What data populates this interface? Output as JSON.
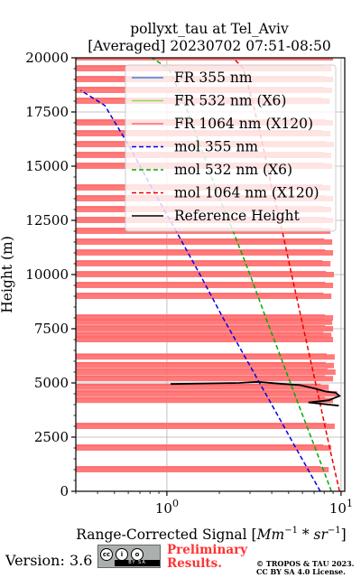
{
  "chart_data": {
    "type": "line",
    "title": "pollyxt_tau at Tel_Aviv",
    "subtitle": "[Averaged] 20230702 07:51-08:50",
    "xlabel": "Range-Corrected Signal [Mm^-1 * sr^-1]",
    "ylabel": "Height (m)",
    "xscale": "log",
    "xlim": [
      0.3,
      10.5
    ],
    "ylim": [
      0,
      20000
    ],
    "x_tick_labels": [
      "10^0",
      "10^1"
    ],
    "x_tick_values": [
      1,
      10
    ],
    "y_ticks": [
      0,
      2500,
      5000,
      7500,
      10000,
      12500,
      15000,
      17500,
      20000
    ],
    "y_tick_labels": [
      "0",
      "2500",
      "5000",
      "7500",
      "10000",
      "12500",
      "15000",
      "17500",
      "20000"
    ],
    "grid": true,
    "legend_position": "top-right",
    "series": [
      {
        "name": "FR 355 nm",
        "color": "#3a86d6",
        "style": "solid",
        "x": [],
        "y": []
      },
      {
        "name": "FR 532 nm (X6)",
        "color": "#88dd55",
        "style": "solid",
        "x": [],
        "y": []
      },
      {
        "name": "FR 1064 nm (X120)",
        "color": "#ff6b6b",
        "style": "solid",
        "note_values": "noisy horizontal segments from x~0.3 to x~9",
        "y": [
          1000,
          2000,
          3000,
          4200,
          4500,
          4800,
          5200,
          5500,
          5800,
          6200,
          7000,
          7200,
          7500,
          7800,
          8000,
          9000,
          9500,
          10000,
          10500,
          11000,
          11500,
          12000,
          12500,
          13000,
          13500,
          14000,
          15000,
          15500,
          16000,
          16500,
          17000,
          18000,
          18500,
          19000,
          19500,
          20000
        ],
        "x": [
          8.5,
          8.8,
          9.2,
          9.0,
          9.5,
          8.5,
          9.0,
          9.3,
          9.1,
          9.2,
          9.0,
          8.8,
          9.0,
          8.9,
          9.0,
          8.8,
          9.0,
          9.1,
          8.7,
          9.0,
          8.9,
          8.7,
          9.0,
          8.8,
          9.0,
          8.7,
          8.9,
          8.8,
          9.1,
          8.7,
          9.0,
          8.6,
          8.9,
          9.0,
          8.8,
          9.0
        ]
      },
      {
        "name": "mol 355 nm",
        "color": "#0000ee",
        "style": "dashed",
        "x": [
          7.6,
          5.5,
          4.0,
          2.9,
          2.1,
          1.55,
          1.13,
          0.82,
          0.6,
          0.44,
          0.32
        ],
        "y": [
          0,
          2000,
          4000,
          6000,
          8000,
          10000,
          12000,
          14000,
          16000,
          17800,
          18500
        ]
      },
      {
        "name": "mol 532 nm (X6)",
        "color": "#00aa00",
        "style": "dashed",
        "x": [
          8.8,
          7.1,
          5.7,
          4.6,
          3.7,
          3.0,
          2.4,
          1.9,
          1.55,
          1.25,
          1.02,
          0.82
        ],
        "y": [
          0,
          2000,
          4000,
          6000,
          8000,
          10000,
          12000,
          14000,
          16000,
          18000,
          19500,
          20000
        ]
      },
      {
        "name": "mol 1064 nm (X120)",
        "color": "#ee0000",
        "style": "dashed",
        "x": [
          9.8,
          8.6,
          7.6,
          6.7,
          5.9,
          5.2,
          4.6,
          4.0,
          3.55,
          3.1,
          2.75,
          2.4
        ],
        "y": [
          0,
          2000,
          4000,
          6000,
          8000,
          10000,
          12000,
          14000,
          16000,
          18000,
          19500,
          20000
        ]
      },
      {
        "name": "Reference Height",
        "color": "#000000",
        "style": "solid",
        "x": [
          1.05,
          2.6,
          3.3,
          4.7,
          5.8,
          7.0,
          8.2,
          9.3,
          9.8,
          8.5,
          6.5,
          9.7
        ],
        "y": [
          4950,
          5000,
          5050,
          4950,
          4900,
          4750,
          4600,
          4550,
          4400,
          4200,
          4100,
          3950
        ]
      }
    ]
  },
  "footer": {
    "version": "Version: 3.6",
    "license_badge_top": "cc ⓘ ⓢ ⓞ",
    "license_badge_bottom": "BY   SA",
    "preliminary_1": "Preliminary",
    "preliminary_2": "Results.",
    "copyright_1": "© TROPOS & TAU 2023.",
    "copyright_2": "CC BY SA 4.0 License."
  }
}
